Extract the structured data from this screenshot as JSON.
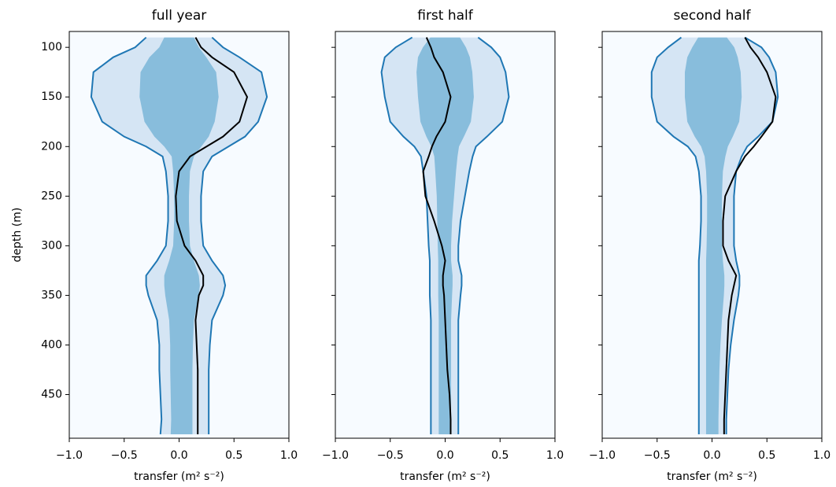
{
  "chart_data": [
    {
      "type": "line",
      "title": "full year",
      "ylabel": "depth (m)",
      "xlabel": "transfer (m² s⁻²)",
      "xlim": [
        -1,
        1
      ],
      "xticks": [
        {
          "value": -1,
          "label": "−1.0"
        },
        {
          "value": -0.5,
          "label": "−0.5"
        },
        {
          "value": 0,
          "label": "0.0"
        },
        {
          "value": 0.5,
          "label": "0.5"
        },
        {
          "value": 1,
          "label": "1.0"
        }
      ],
      "ylim": [
        494,
        84
      ],
      "yticks": [
        100,
        150,
        200,
        250,
        300,
        350,
        400,
        450
      ],
      "y": [
        90,
        100,
        110,
        125,
        150,
        175,
        190,
        200,
        210,
        225,
        250,
        275,
        300,
        315,
        330,
        340,
        350,
        375,
        400,
        425,
        450,
        475,
        490
      ],
      "series": [
        {
          "color": "#1f77b4",
          "values": [
            -0.3,
            -0.4,
            -0.6,
            -0.78,
            -0.8,
            -0.7,
            -0.5,
            -0.3,
            -0.15,
            -0.12,
            -0.1,
            -0.1,
            -0.12,
            -0.2,
            -0.3,
            -0.3,
            -0.28,
            -0.2,
            -0.18,
            -0.18,
            -0.17,
            -0.16,
            -0.17
          ]
        },
        {
          "color": "#1f77b4",
          "values": [
            0.3,
            0.4,
            0.55,
            0.75,
            0.8,
            0.72,
            0.6,
            0.45,
            0.3,
            0.22,
            0.2,
            0.2,
            0.22,
            0.3,
            0.4,
            0.42,
            0.4,
            0.3,
            0.28,
            0.27,
            0.27,
            0.27,
            0.27
          ]
        },
        {
          "color": "#000000",
          "values": [
            0.15,
            0.2,
            0.3,
            0.5,
            0.62,
            0.55,
            0.4,
            0.25,
            0.1,
            0.0,
            -0.03,
            -0.02,
            0.05,
            0.15,
            0.22,
            0.22,
            0.18,
            0.15,
            0.16,
            0.17,
            0.17,
            0.17,
            0.17
          ]
        }
      ]
    },
    {
      "type": "line",
      "title": "first half",
      "xlabel": "transfer (m² s⁻²)",
      "xlim": [
        -1,
        1
      ],
      "xticks": [
        {
          "value": -1,
          "label": "−1.0"
        },
        {
          "value": -0.5,
          "label": "−0.5"
        },
        {
          "value": 0,
          "label": "0.0"
        },
        {
          "value": 0.5,
          "label": "0.5"
        },
        {
          "value": 1,
          "label": "1.0"
        }
      ],
      "ylim": [
        494,
        84
      ],
      "yticks": [
        100,
        150,
        200,
        250,
        300,
        350,
        400,
        450
      ],
      "y": [
        90,
        100,
        110,
        125,
        150,
        175,
        190,
        200,
        210,
        225,
        250,
        275,
        300,
        315,
        330,
        340,
        350,
        375,
        400,
        425,
        450,
        475,
        490
      ],
      "series": [
        {
          "color": "#1f77b4",
          "values": [
            -0.3,
            -0.45,
            -0.55,
            -0.58,
            -0.55,
            -0.5,
            -0.38,
            -0.28,
            -0.22,
            -0.2,
            -0.17,
            -0.16,
            -0.15,
            -0.14,
            -0.14,
            -0.14,
            -0.14,
            -0.13,
            -0.13,
            -0.13,
            -0.13,
            -0.13,
            -0.13
          ]
        },
        {
          "color": "#1f77b4",
          "values": [
            0.3,
            0.42,
            0.5,
            0.55,
            0.58,
            0.52,
            0.38,
            0.28,
            0.25,
            0.22,
            0.18,
            0.14,
            0.12,
            0.12,
            0.15,
            0.15,
            0.14,
            0.12,
            0.12,
            0.12,
            0.12,
            0.12,
            0.12
          ]
        },
        {
          "color": "#000000",
          "values": [
            -0.17,
            -0.13,
            -0.1,
            -0.02,
            0.05,
            0.0,
            -0.08,
            -0.12,
            -0.15,
            -0.2,
            -0.18,
            -0.1,
            -0.03,
            0.0,
            -0.02,
            -0.02,
            -0.01,
            0.0,
            0.01,
            0.02,
            0.04,
            0.05,
            0.05
          ]
        }
      ]
    },
    {
      "type": "line",
      "title": "second half",
      "xlabel": "transfer (m² s⁻²)",
      "xlim": [
        -1,
        1
      ],
      "xticks": [
        {
          "value": -1,
          "label": "−1.0"
        },
        {
          "value": -0.5,
          "label": "−0.5"
        },
        {
          "value": 0,
          "label": "0.0"
        },
        {
          "value": 0.5,
          "label": "0.5"
        },
        {
          "value": 1,
          "label": "1.0"
        }
      ],
      "ylim": [
        494,
        84
      ],
      "yticks": [
        100,
        150,
        200,
        250,
        300,
        350,
        400,
        450
      ],
      "y": [
        90,
        100,
        110,
        125,
        150,
        175,
        190,
        200,
        210,
        225,
        250,
        275,
        300,
        315,
        330,
        340,
        350,
        375,
        400,
        425,
        450,
        475,
        490
      ],
      "series": [
        {
          "color": "#1f77b4",
          "values": [
            -0.28,
            -0.4,
            -0.5,
            -0.55,
            -0.55,
            -0.5,
            -0.35,
            -0.22,
            -0.15,
            -0.12,
            -0.1,
            -0.1,
            -0.11,
            -0.12,
            -0.12,
            -0.12,
            -0.12,
            -0.12,
            -0.12,
            -0.12,
            -0.12,
            -0.12,
            -0.12
          ]
        },
        {
          "color": "#1f77b4",
          "values": [
            0.3,
            0.45,
            0.52,
            0.58,
            0.6,
            0.55,
            0.42,
            0.32,
            0.27,
            0.22,
            0.2,
            0.2,
            0.2,
            0.22,
            0.25,
            0.25,
            0.24,
            0.2,
            0.17,
            0.15,
            0.14,
            0.13,
            0.13
          ]
        },
        {
          "color": "#000000",
          "values": [
            0.3,
            0.35,
            0.42,
            0.5,
            0.58,
            0.55,
            0.45,
            0.38,
            0.3,
            0.22,
            0.12,
            0.1,
            0.1,
            0.15,
            0.22,
            0.2,
            0.18,
            0.15,
            0.14,
            0.13,
            0.12,
            0.11,
            0.11
          ]
        }
      ]
    }
  ]
}
